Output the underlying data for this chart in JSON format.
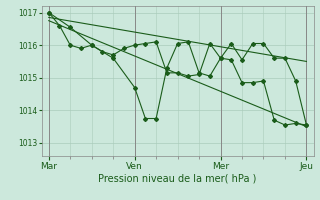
{
  "bg_color": "#cce8dc",
  "grid_color": "#aaccbb",
  "line_color": "#1a5c1a",
  "xlabel": "Pression niveau de la mer( hPa )",
  "ylim": [
    1012.6,
    1017.2
  ],
  "yticks": [
    1013,
    1014,
    1015,
    1016,
    1017
  ],
  "xtick_labels": [
    "Mar",
    "Ven",
    "Mer",
    "Jeu"
  ],
  "xtick_positions": [
    0,
    24,
    48,
    72
  ],
  "series1_x": [
    0,
    3,
    6,
    9,
    12,
    15,
    18,
    21,
    24,
    27,
    30,
    33,
    36,
    39,
    42,
    45,
    48,
    51,
    54,
    57,
    60,
    63,
    66,
    69,
    72
  ],
  "series1_y": [
    1017.0,
    1016.6,
    1016.0,
    1015.9,
    1016.0,
    1015.8,
    1015.7,
    1015.9,
    1016.0,
    1016.05,
    1016.1,
    1015.15,
    1015.15,
    1015.05,
    1015.1,
    1016.05,
    1015.6,
    1015.55,
    1014.85,
    1014.85,
    1014.9,
    1013.7,
    1013.55,
    1013.6,
    1013.55
  ],
  "series2_x": [
    0,
    6,
    12,
    18,
    24,
    27,
    30,
    33,
    36,
    39,
    42,
    45,
    48,
    51,
    54,
    57,
    60,
    63,
    66,
    69,
    72
  ],
  "series2_y": [
    1017.0,
    1016.55,
    1016.0,
    1015.6,
    1014.7,
    1013.75,
    1013.75,
    1015.3,
    1016.05,
    1016.1,
    1015.15,
    1015.05,
    1015.6,
    1016.05,
    1015.55,
    1016.05,
    1016.05,
    1015.6,
    1015.6,
    1014.9,
    1013.55
  ],
  "trend1_x": [
    0,
    72
  ],
  "trend1_y": [
    1016.85,
    1015.5
  ],
  "trend2_x": [
    0,
    72
  ],
  "trend2_y": [
    1016.75,
    1013.5
  ],
  "markersize": 2.0,
  "linewidth": 0.8
}
